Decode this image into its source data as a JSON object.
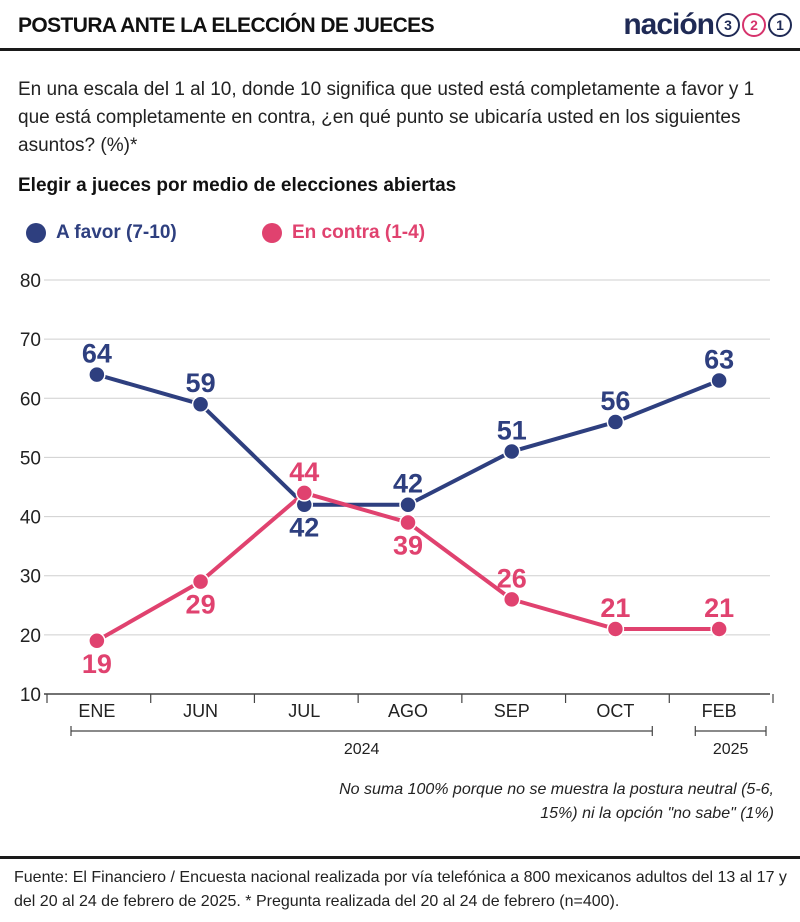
{
  "header": {
    "title": "POSTURA ANTE LA ELECCIÓN DE JUECES",
    "logo_text": "nación",
    "logo_digits": [
      "3",
      "2",
      "1"
    ]
  },
  "question": "En una escala del 1 al 10, donde 10 significa que usted está completamente a favor y 1 que está completamente en contra, ¿en qué punto se ubicaría usted en los siguientes asuntos? (%)*",
  "subtitle": "Elegir a jueces por medio de elecciones abiertas",
  "chart_data": {
    "type": "line",
    "categories": [
      "ENE",
      "JUN",
      "JUL",
      "AGO",
      "SEP",
      "OCT",
      "FEB"
    ],
    "year_groups": [
      {
        "label": "2024",
        "from": 0,
        "to": 5
      },
      {
        "label": "2025",
        "from": 6,
        "to": 6
      }
    ],
    "ylim": [
      10,
      80
    ],
    "yticks": [
      10,
      20,
      30,
      40,
      50,
      60,
      70,
      80
    ],
    "grid": true,
    "legend_position": "top-left",
    "series": [
      {
        "name": "A favor (7-10)",
        "color": "#2e3f7f",
        "values": [
          64,
          59,
          42,
          42,
          51,
          56,
          63
        ],
        "label_positions": [
          "above",
          "above",
          "below",
          "above",
          "above",
          "above",
          "above"
        ]
      },
      {
        "name": "En contra (1-4)",
        "color": "#e0426f",
        "values": [
          19,
          29,
          44,
          39,
          26,
          21,
          21
        ],
        "label_positions": [
          "below",
          "below",
          "above",
          "below",
          "above",
          "above",
          "above"
        ]
      }
    ]
  },
  "note": "No suma 100% porque no se muestra la postura neutral (5-6, 15%) ni la opción \"no sabe\" (1%)",
  "source": "Fuente: El Financiero / Encuesta nacional realizada por vía telefónica a 800 mexicanos adultos del 13 al 17 y del 20 al 24 de febrero de 2025. * Pregunta realizada del 20 al 24 de febrero (n=400)."
}
